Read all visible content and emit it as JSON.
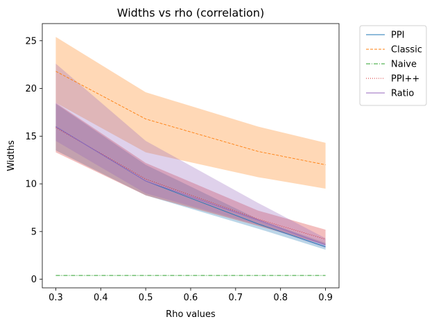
{
  "chart_data": {
    "type": "line",
    "title": "Widths vs rho (correlation)",
    "xlabel": "Rho values",
    "ylabel": "Widths",
    "xlim": [
      0.27,
      0.93
    ],
    "ylim": [
      -0.9,
      26.8
    ],
    "xticks": [
      0.3,
      0.4,
      0.5,
      0.6,
      0.7,
      0.8,
      0.9
    ],
    "xtick_labels": [
      "0.3",
      "0.4",
      "0.5",
      "0.6",
      "0.7",
      "0.8",
      "0.9"
    ],
    "yticks": [
      0,
      5,
      10,
      15,
      20,
      25
    ],
    "ytick_labels": [
      "0",
      "5",
      "10",
      "15",
      "20",
      "25"
    ],
    "grid": false,
    "legend_position": "outside-top-right",
    "x": [
      0.3,
      0.5,
      0.75,
      0.9
    ],
    "series": [
      {
        "name": "PPI",
        "color": "#1f77b4",
        "dash": "solid",
        "values": [
          16.0,
          10.3,
          5.8,
          3.4
        ],
        "lower": [
          13.5,
          8.8,
          5.3,
          3.1
        ],
        "upper": [
          18.4,
          12.0,
          6.3,
          3.8
        ]
      },
      {
        "name": "Classic",
        "color": "#ff7f0e",
        "dash": "dashed",
        "values": [
          21.8,
          16.8,
          13.4,
          12.0
        ],
        "lower": [
          18.5,
          13.3,
          10.7,
          9.5
        ],
        "upper": [
          25.4,
          19.6,
          16.0,
          14.3
        ]
      },
      {
        "name": "Naive",
        "color": "#2ca02c",
        "dash": "dashdot",
        "values": [
          0.4,
          0.4,
          0.4,
          0.4
        ],
        "lower": [
          0.38,
          0.38,
          0.38,
          0.38
        ],
        "upper": [
          0.42,
          0.42,
          0.42,
          0.42
        ]
      },
      {
        "name": "PPI++",
        "color": "#d62728",
        "dash": "dotted",
        "values": [
          15.9,
          10.5,
          6.3,
          4.2
        ],
        "lower": [
          13.3,
          8.8,
          5.6,
          3.6
        ],
        "upper": [
          18.5,
          12.2,
          7.2,
          5.2
        ]
      },
      {
        "name": "Ratio",
        "color": "#9467bd",
        "dash": "solid",
        "values": [
          16.0,
          10.3,
          6.2,
          3.6
        ],
        "lower": [
          14.5,
          9.0,
          5.7,
          3.3
        ],
        "upper": [
          22.6,
          14.5,
          8.0,
          4.3
        ]
      }
    ]
  }
}
